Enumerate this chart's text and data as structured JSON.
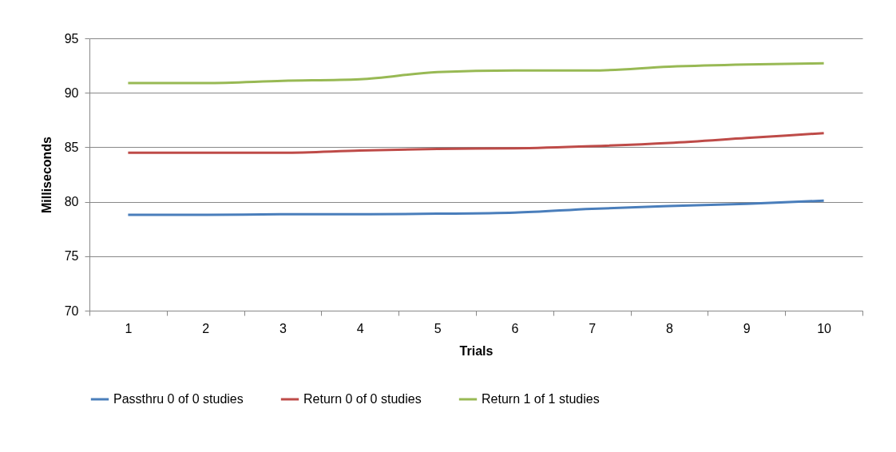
{
  "chart_data": {
    "type": "line",
    "xlabel": "Trials",
    "ylabel": "Milliseconds",
    "categories": [
      "1",
      "2",
      "3",
      "4",
      "5",
      "6",
      "7",
      "8",
      "9",
      "10"
    ],
    "series": [
      {
        "name": "Passthru 0 of 0 studies",
        "color": "#4a7ebb",
        "values": [
          78.8,
          78.8,
          78.85,
          78.85,
          78.9,
          79.0,
          79.35,
          79.6,
          79.8,
          80.1
        ]
      },
      {
        "name": "Return 0 of 0 studies",
        "color": "#be4b48",
        "values": [
          84.5,
          84.5,
          84.5,
          84.7,
          84.85,
          84.9,
          85.1,
          85.4,
          85.85,
          86.3
        ]
      },
      {
        "name": "Return 1 of 1 studies",
        "color": "#98b954",
        "values": [
          90.9,
          90.9,
          91.1,
          91.25,
          91.9,
          92.05,
          92.05,
          92.4,
          92.6,
          92.7
        ]
      }
    ],
    "ylim": [
      70,
      95
    ],
    "yticks": [
      70,
      75,
      80,
      85,
      90,
      95
    ],
    "grid": "y",
    "legend": "bottom",
    "marker": "none",
    "line_style": "solid"
  }
}
